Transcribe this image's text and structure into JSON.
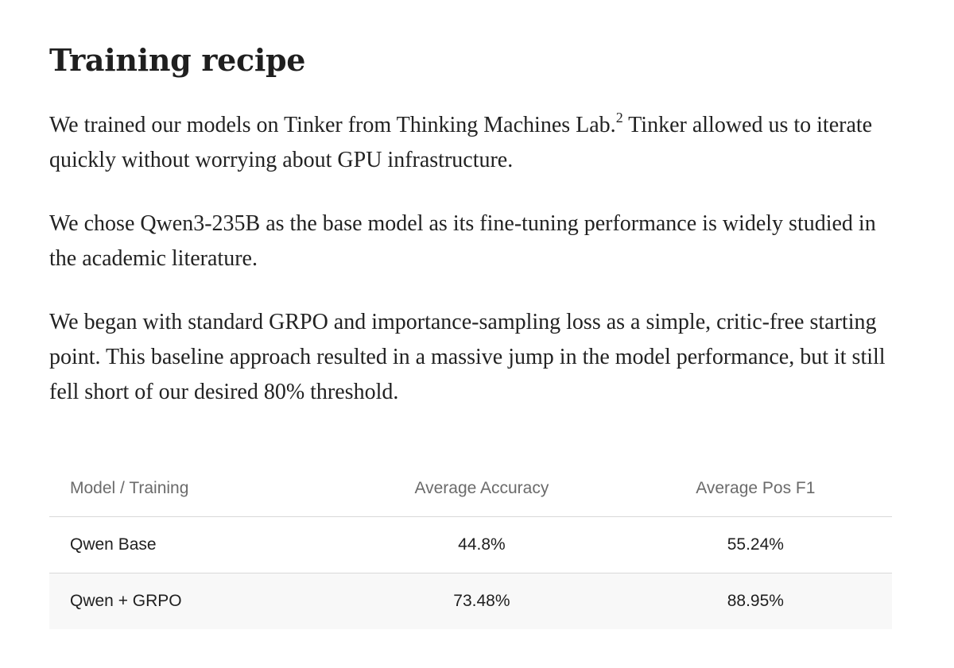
{
  "section": {
    "title": "Training recipe"
  },
  "paragraphs": {
    "p1_before_ref": "We trained our models on Tinker from Thinking Machines Lab.",
    "p1_footnote": "2",
    "p1_after_ref": " Tinker allowed us to iterate quickly without worrying about GPU infrastructure.",
    "p2": "We chose Qwen3-235B as the base model as its fine-tuning performance is widely studied in the academic literature.",
    "p3": "We began with standard GRPO and importance-sampling loss as a simple, critic-free starting point. This baseline approach resulted in a massive jump in the model performance, but it still fell short of our desired 80% threshold."
  },
  "table": {
    "headers": [
      "Model / Training",
      "Average Accuracy",
      "Average Pos F1"
    ],
    "rows": [
      [
        "Qwen Base",
        "44.8%",
        "55.24%"
      ],
      [
        "Qwen + GRPO",
        "73.48%",
        "88.95%"
      ]
    ]
  }
}
